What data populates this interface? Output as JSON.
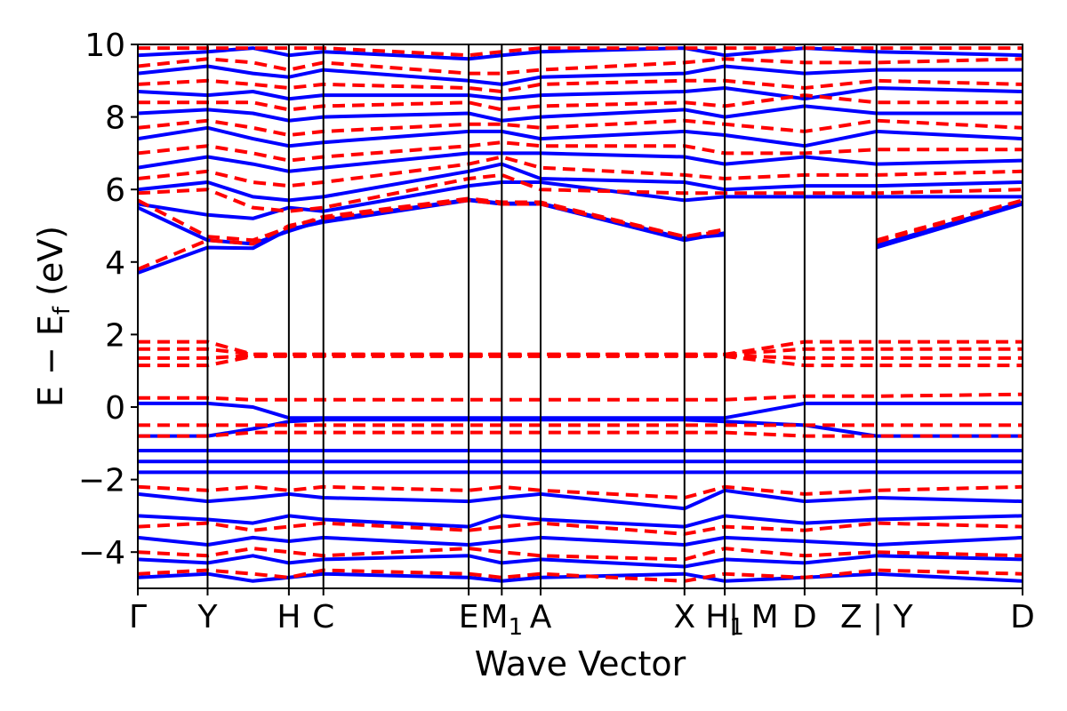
{
  "chart_data": {
    "type": "line",
    "title": "",
    "xlabel": "Wave Vector",
    "ylabel_main": "E − E",
    "ylabel_sub": "f",
    "ylabel_unit": "(eV)",
    "ylim": [
      -5,
      10
    ],
    "yticks": [
      -4,
      -2,
      0,
      2,
      4,
      6,
      8,
      10
    ],
    "ytick_labels": [
      "−4",
      "−2",
      "0",
      "2",
      "4",
      "6",
      "8",
      "10"
    ],
    "xlim": [
      0,
      12.3
    ],
    "kpoints": [
      {
        "x": 0.0,
        "label": "Γ"
      },
      {
        "x": 0.97,
        "label": "Y"
      },
      {
        "x": 2.1,
        "label": "H"
      },
      {
        "x": 2.58,
        "label": "C"
      },
      {
        "x": 4.6,
        "label": "E"
      },
      {
        "x": 5.06,
        "label": "M",
        "sub": "1"
      },
      {
        "x": 5.6,
        "label": "A"
      },
      {
        "x": 7.6,
        "label": "X"
      },
      {
        "x": 8.16,
        "label": "H",
        "sub": "1"
      },
      {
        "x": 9.27,
        "label": "D"
      },
      {
        "x": 10.27,
        "label": "Z | Y"
      },
      {
        "x": 12.3,
        "label": "D"
      }
    ],
    "extra_tick_labels": [
      {
        "x": 8.16,
        "label": "|"
      },
      {
        "x": 8.16,
        "label": "M"
      }
    ],
    "series": [
      {
        "color": "#0000ff",
        "style": "solid",
        "bands": [
          [
            3.7,
            4.4,
            4.38,
            4.9,
            5.1,
            5.7,
            5.6,
            5.6,
            4.6,
            4.8,
            null,
            4.4,
            5.6
          ],
          [
            5.5,
            4.6,
            4.5,
            4.85,
            5.15,
            5.72,
            5.62,
            5.62,
            4.65,
            4.75,
            null,
            4.45,
            5.65
          ],
          [
            5.6,
            5.3,
            5.2,
            5.5,
            5.4,
            6.1,
            6.2,
            6.2,
            5.7,
            5.8,
            5.8,
            5.8,
            5.8
          ],
          [
            6.0,
            6.2,
            5.8,
            5.7,
            5.8,
            6.5,
            6.7,
            6.3,
            6.2,
            6.0,
            6.1,
            6.1,
            6.2
          ],
          [
            6.6,
            6.9,
            6.7,
            6.5,
            6.6,
            7.0,
            7.0,
            7.0,
            6.9,
            6.7,
            6.9,
            6.7,
            6.8
          ],
          [
            7.4,
            7.7,
            7.4,
            7.2,
            7.3,
            7.6,
            7.6,
            7.4,
            7.6,
            7.5,
            7.2,
            7.6,
            7.4
          ],
          [
            8.1,
            8.2,
            8.1,
            7.9,
            8.0,
            8.1,
            7.9,
            8.0,
            8.2,
            8.0,
            8.3,
            8.1,
            8.1
          ],
          [
            8.7,
            8.6,
            8.7,
            8.5,
            8.6,
            8.6,
            8.5,
            8.6,
            8.7,
            8.8,
            8.5,
            8.8,
            8.7
          ],
          [
            9.2,
            9.4,
            9.2,
            9.1,
            9.3,
            9.0,
            8.9,
            9.1,
            9.2,
            9.4,
            9.2,
            9.3,
            9.3
          ],
          [
            9.7,
            9.8,
            9.9,
            9.7,
            9.8,
            9.6,
            9.7,
            9.8,
            9.9,
            9.7,
            9.9,
            9.8,
            9.7
          ],
          [
            0.1,
            0.1,
            0.0,
            -0.3,
            -0.3,
            -0.3,
            -0.3,
            -0.3,
            -0.3,
            -0.3,
            0.1,
            0.1,
            0.1
          ],
          [
            -0.8,
            -0.8,
            -0.6,
            -0.4,
            -0.35,
            -0.35,
            -0.35,
            -0.35,
            -0.35,
            -0.4,
            -0.5,
            -0.8,
            -0.8
          ],
          [
            -1.2,
            -1.2,
            -1.2,
            -1.2,
            -1.2,
            -1.2,
            -1.2,
            -1.2,
            -1.2,
            -1.2,
            -1.2,
            -1.2,
            -1.2
          ],
          [
            -1.5,
            -1.5,
            -1.5,
            -1.5,
            -1.5,
            -1.5,
            -1.5,
            -1.5,
            -1.5,
            -1.5,
            -1.5,
            -1.5,
            -1.5
          ],
          [
            -1.8,
            -1.8,
            -1.8,
            -1.8,
            -1.8,
            -1.8,
            -1.8,
            -1.8,
            -1.8,
            -1.8,
            -1.8,
            -1.8,
            -1.8
          ],
          [
            -2.4,
            -2.6,
            -2.5,
            -2.4,
            -2.5,
            -2.6,
            -2.5,
            -2.4,
            -2.8,
            -2.3,
            -2.6,
            -2.5,
            -2.6
          ],
          [
            -3.0,
            -3.1,
            -3.2,
            -3.0,
            -3.1,
            -3.3,
            -3.0,
            -3.1,
            -3.3,
            -3.0,
            -3.2,
            -3.1,
            -3.0
          ],
          [
            -3.6,
            -3.8,
            -3.6,
            -3.7,
            -3.6,
            -3.8,
            -3.7,
            -3.6,
            -3.8,
            -3.6,
            -3.7,
            -3.8,
            -3.6
          ],
          [
            -4.2,
            -4.3,
            -4.1,
            -4.3,
            -4.2,
            -4.1,
            -4.3,
            -4.2,
            -4.4,
            -4.2,
            -4.3,
            -4.1,
            -4.2
          ],
          [
            -4.7,
            -4.6,
            -4.8,
            -4.7,
            -4.6,
            -4.7,
            -4.8,
            -4.7,
            -4.6,
            -4.8,
            -4.7,
            -4.6,
            -4.8
          ]
        ]
      },
      {
        "color": "#ff0000",
        "style": "dashed",
        "bands": [
          [
            3.8,
            4.6,
            4.5,
            5.0,
            5.2,
            5.7,
            5.6,
            5.6,
            4.7,
            4.9,
            null,
            4.6,
            5.7
          ],
          [
            5.7,
            4.7,
            4.6,
            4.95,
            5.25,
            5.75,
            5.65,
            5.65,
            4.7,
            4.85,
            null,
            4.55,
            5.7
          ],
          [
            5.9,
            6.0,
            5.5,
            5.4,
            5.5,
            6.3,
            6.4,
            6.0,
            5.9,
            5.9,
            5.9,
            5.9,
            6.0
          ],
          [
            6.3,
            6.5,
            6.2,
            6.1,
            6.2,
            6.7,
            6.9,
            6.6,
            6.4,
            6.3,
            6.4,
            6.4,
            6.5
          ],
          [
            7.0,
            7.2,
            7.0,
            6.8,
            6.9,
            7.2,
            7.3,
            7.2,
            7.2,
            7.0,
            7.0,
            7.1,
            7.1
          ],
          [
            7.7,
            7.9,
            7.7,
            7.5,
            7.6,
            7.8,
            7.8,
            7.7,
            7.9,
            7.8,
            7.6,
            7.9,
            7.7
          ],
          [
            8.4,
            8.4,
            8.4,
            8.2,
            8.3,
            8.4,
            8.2,
            8.3,
            8.4,
            8.3,
            8.6,
            8.4,
            8.4
          ],
          [
            8.9,
            9.0,
            8.9,
            8.8,
            8.9,
            8.8,
            8.7,
            8.9,
            9.0,
            9.0,
            8.8,
            9.0,
            8.9
          ],
          [
            9.4,
            9.6,
            9.5,
            9.3,
            9.5,
            9.2,
            9.2,
            9.3,
            9.5,
            9.6,
            9.5,
            9.5,
            9.6
          ],
          [
            9.9,
            9.9,
            9.9,
            9.9,
            9.9,
            9.7,
            9.8,
            9.9,
            9.9,
            9.9,
            9.9,
            9.9,
            9.9
          ],
          [
            1.8,
            1.8,
            1.45,
            1.45,
            1.45,
            1.45,
            1.45,
            1.45,
            1.45,
            1.45,
            1.8,
            1.8,
            1.8
          ],
          [
            1.6,
            1.6,
            1.45,
            1.45,
            1.45,
            1.45,
            1.45,
            1.45,
            1.45,
            1.45,
            1.6,
            1.6,
            1.6
          ],
          [
            1.35,
            1.35,
            1.42,
            1.42,
            1.42,
            1.42,
            1.42,
            1.42,
            1.42,
            1.42,
            1.35,
            1.35,
            1.35
          ],
          [
            1.15,
            1.15,
            1.4,
            1.4,
            1.4,
            1.4,
            1.4,
            1.4,
            1.4,
            1.4,
            1.15,
            1.15,
            1.15
          ],
          [
            0.25,
            0.25,
            0.2,
            0.2,
            0.2,
            0.2,
            0.2,
            0.2,
            0.2,
            0.2,
            0.3,
            0.3,
            0.35
          ],
          [
            -0.5,
            -0.5,
            -0.5,
            -0.5,
            -0.5,
            -0.5,
            -0.5,
            -0.5,
            -0.5,
            -0.5,
            -0.5,
            -0.5,
            -0.5
          ],
          [
            -0.8,
            -0.8,
            -0.7,
            -0.7,
            -0.7,
            -0.7,
            -0.7,
            -0.7,
            -0.7,
            -0.7,
            -0.8,
            -0.8,
            -0.8
          ],
          [
            -2.2,
            -2.3,
            -2.2,
            -2.3,
            -2.2,
            -2.3,
            -2.2,
            -2.3,
            -2.5,
            -2.2,
            -2.4,
            -2.3,
            -2.2
          ],
          [
            -3.3,
            -3.2,
            -3.4,
            -3.3,
            -3.2,
            -3.4,
            -3.3,
            -3.2,
            -3.5,
            -3.3,
            -3.4,
            -3.2,
            -3.3
          ],
          [
            -4.0,
            -4.1,
            -3.9,
            -4.0,
            -4.1,
            -3.9,
            -4.0,
            -4.1,
            -4.2,
            -3.9,
            -4.1,
            -4.0,
            -4.1
          ],
          [
            -4.6,
            -4.5,
            -4.6,
            -4.7,
            -4.5,
            -4.6,
            -4.7,
            -4.6,
            -4.8,
            -4.6,
            -4.7,
            -4.5,
            -4.6
          ]
        ]
      }
    ],
    "band_x": [
      0.0,
      0.97,
      1.6,
      2.1,
      2.58,
      4.6,
      5.06,
      5.6,
      7.6,
      8.16,
      9.27,
      10.27,
      12.3
    ]
  }
}
